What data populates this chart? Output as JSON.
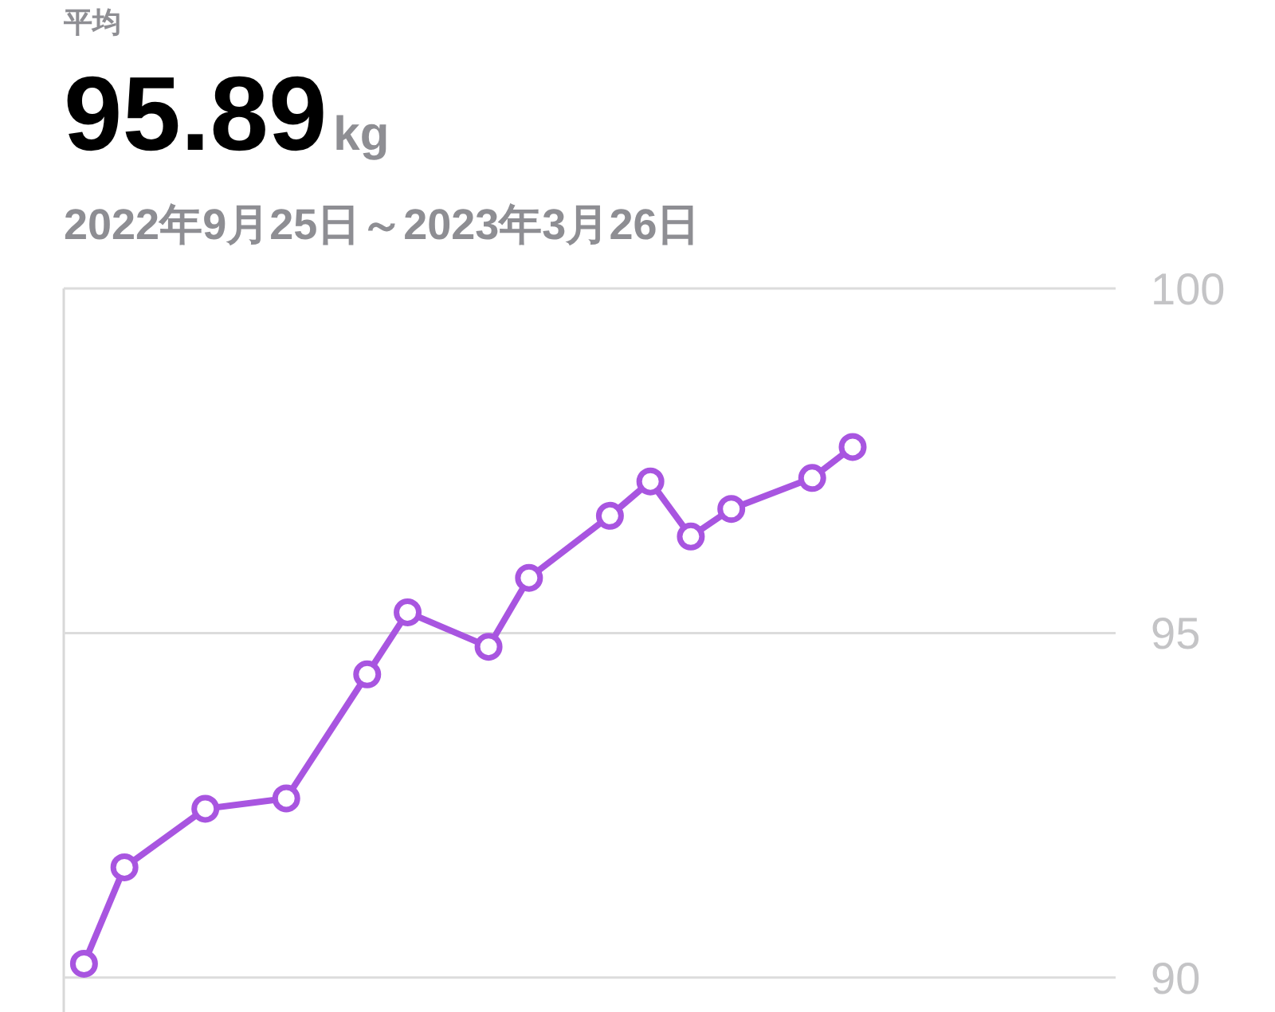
{
  "chart_data": {
    "type": "line",
    "title": "平均",
    "subtitle": "95.89kg",
    "annotations": [
      "2022年9月25日～2023年3月26日"
    ],
    "categories": [
      null,
      null,
      null,
      null,
      null,
      null,
      null,
      null,
      null,
      null,
      null,
      null,
      null,
      null,
      null,
      null,
      null,
      null,
      null,
      null,
      null,
      null,
      null,
      null,
      null,
      null
    ],
    "series": [
      {
        "color": "#a855e0",
        "values": [
          90.2,
          91.6,
          null,
          92.45,
          null,
          92.6,
          null,
          94.4,
          95.3,
          null,
          94.8,
          95.8,
          null,
          96.7,
          97.2,
          96.4,
          96.8,
          null,
          97.25,
          97.7,
          null,
          null,
          null,
          null,
          null,
          null
        ]
      }
    ],
    "ylim": [
      89.5,
      100
    ],
    "yticks": [
      90,
      95,
      100
    ],
    "tick_labels": "y",
    "grid": "y",
    "marker": "circle",
    "line_style": "solid"
  }
}
